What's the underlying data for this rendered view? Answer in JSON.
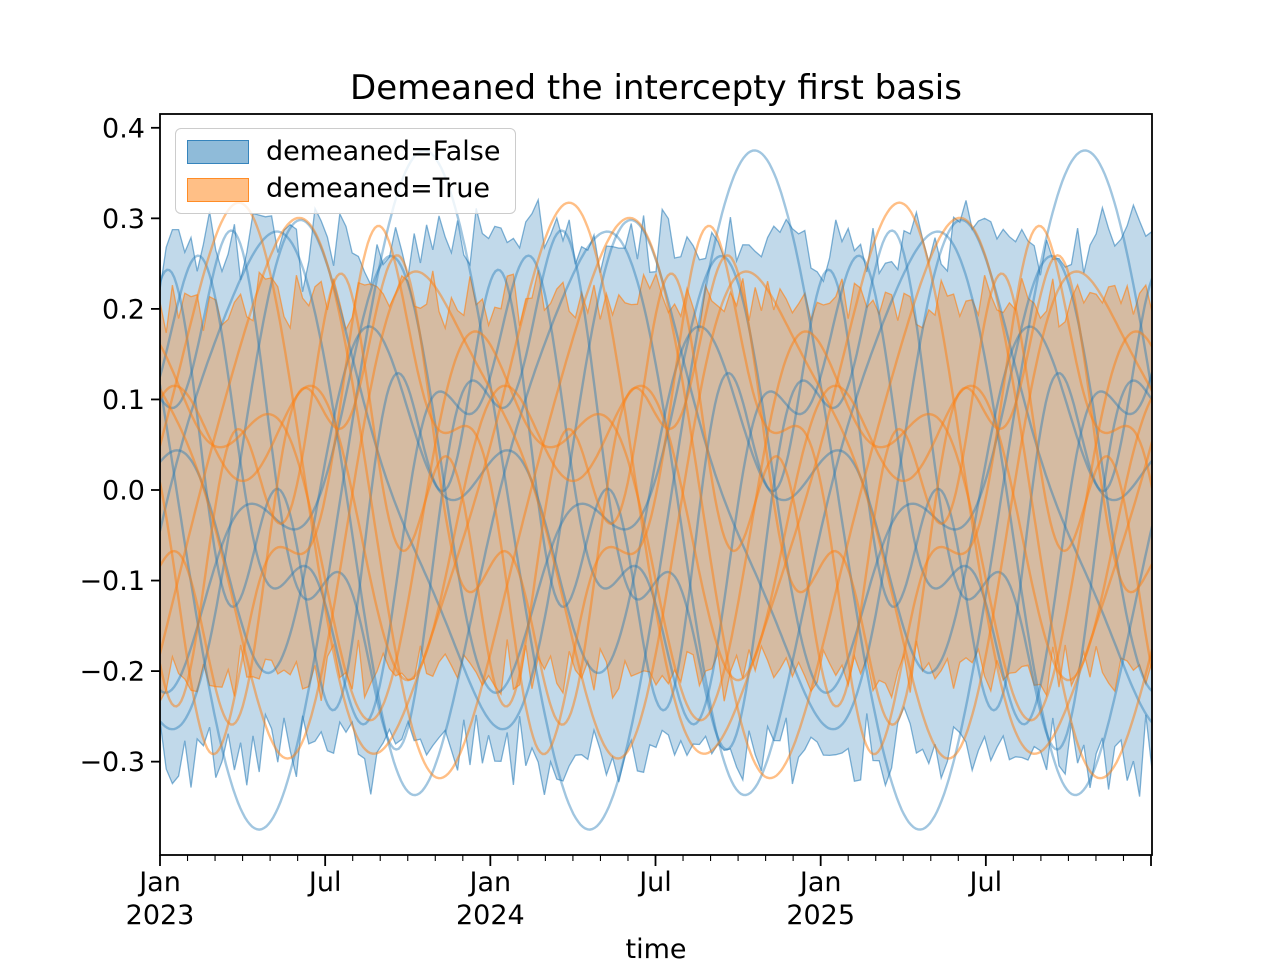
{
  "figure": {
    "title": "Demeaned the intercepty first basis"
  },
  "legend": {
    "entries": [
      {
        "label": "demeaned=False",
        "color": "#1f77b4",
        "swatch_fill_opacity": 0.5,
        "swatch_edge_opacity": 0.8
      },
      {
        "label": "demeaned=True",
        "color": "#ff7f0e",
        "swatch_fill_opacity": 0.5,
        "swatch_edge_opacity": 0.8
      }
    ]
  },
  "chart_data": {
    "type": "line",
    "title": "Demeaned the intercepty first basis",
    "xlabel": "time",
    "ylabel": "",
    "grid": false,
    "legend_position": "upper left",
    "x_domain": {
      "start": "2023-01-01",
      "end": "2026-01-01",
      "unit": "years",
      "span_years": 3.003
    },
    "ylim": [
      -0.403,
      0.415
    ],
    "y_ticks": {
      "values": [
        0.4,
        0.3,
        0.2,
        0.1,
        0.0,
        -0.1,
        -0.2,
        -0.3
      ],
      "labels": [
        "0.4",
        "0.3",
        "0.2",
        "0.1",
        "0.0",
        "−0.1",
        "−0.2",
        "−0.3"
      ]
    },
    "x_ticks": {
      "major": [
        {
          "t": 0.0,
          "line1": "Jan",
          "line2": "2023"
        },
        {
          "t": 0.5,
          "line1": "Jul"
        },
        {
          "t": 1.0,
          "line1": "Jan",
          "line2": "2024"
        },
        {
          "t": 1.5,
          "line1": "Jul"
        },
        {
          "t": 2.0,
          "line1": "Jan",
          "line2": "2025"
        },
        {
          "t": 2.5,
          "line1": "Jul"
        },
        {
          "t": 3.0
        }
      ],
      "minor_interval_months": 1
    },
    "band_points": 160,
    "line_width": 2.4,
    "groups": [
      {
        "name": "demeaned=False",
        "color": "#1f77b4",
        "line_opacity": 0.42,
        "band": {
          "upper_mean": 0.272,
          "lower_mean": -0.292,
          "jitter": 0.055,
          "fill_opacity": 0.28,
          "edge_opacity": 0.55,
          "seed": 7
        },
        "series": [
          {
            "components": [
              [
                0.375,
                1,
                0.45
              ]
            ]
          },
          {
            "components": [
              [
                0.3,
                1,
                0.95
              ],
              [
                0.05,
                2,
                0.3
              ]
            ]
          },
          {
            "components": [
              [
                0.22,
                1,
                0.1
              ],
              [
                0.09,
                3,
                0.55
              ]
            ]
          },
          {
            "components": [
              [
                0.17,
                1,
                0.62
              ],
              [
                0.11,
                2,
                0.8
              ]
            ]
          },
          {
            "components": [
              [
                0.14,
                1,
                0.3
              ],
              [
                0.12,
                3,
                0.15
              ]
            ]
          },
          {
            "components": [
              [
                0.26,
                1,
                0.78
              ],
              [
                0.06,
                2,
                0.5
              ]
            ]
          },
          {
            "components": [
              [
                0.12,
                1,
                0.5
              ],
              [
                0.1,
                2,
                0.05
              ]
            ]
          },
          {
            "components": [
              [
                0.2,
                1,
                0.2
              ],
              [
                0.08,
                3,
                0.85
              ]
            ]
          }
        ]
      },
      {
        "name": "demeaned=True",
        "color": "#ff7f0e",
        "line_opacity": 0.5,
        "band": {
          "upper_mean": 0.21,
          "lower_mean": -0.2,
          "jitter": 0.038,
          "fill_opacity": 0.33,
          "edge_opacity": 0.6,
          "seed": 13
        },
        "series": [
          {
            "components": [
              [
                0.3,
                1,
                0.87
              ],
              [
                0.04,
                2,
                0.2
              ]
            ]
          },
          {
            "components": [
              [
                0.29,
                1,
                0.05
              ],
              [
                0.05,
                2,
                0.65
              ]
            ]
          },
          {
            "components": [
              [
                0.22,
                1,
                0.55
              ],
              [
                0.08,
                3,
                0.3
              ]
            ]
          },
          {
            "components": [
              [
                0.16,
                1,
                0.15
              ],
              [
                0.1,
                2,
                0.45
              ]
            ]
          },
          {
            "components": [
              [
                0.13,
                1,
                0.72
              ],
              [
                0.11,
                3,
                0.6
              ]
            ]
          },
          {
            "components": [
              [
                0.25,
                1,
                0.4
              ],
              [
                0.06,
                2,
                0.9
              ]
            ]
          },
          {
            "components": [
              [
                0.11,
                1,
                0.0
              ],
              [
                0.1,
                2,
                0.25
              ]
            ]
          },
          {
            "components": [
              [
                0.19,
                1,
                0.6
              ],
              [
                0.09,
                3,
                0.05
              ]
            ]
          }
        ]
      }
    ]
  }
}
